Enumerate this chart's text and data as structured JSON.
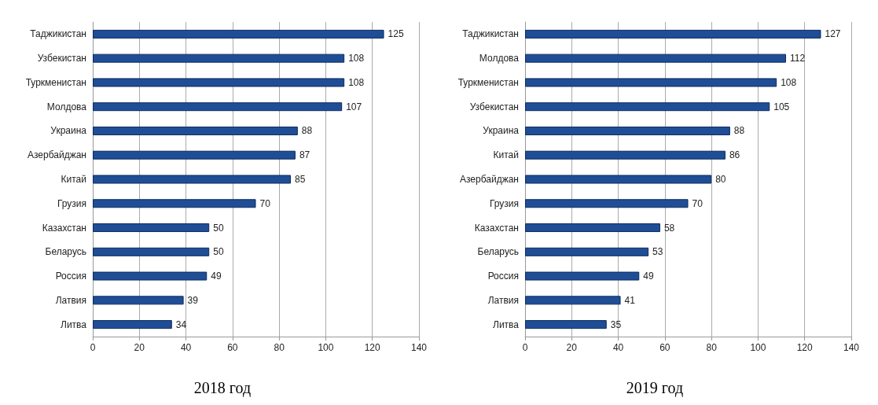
{
  "chart_data": [
    {
      "type": "bar",
      "orientation": "horizontal",
      "title": "2018 год",
      "categories": [
        "Таджикистан",
        "Узбекистан",
        "Туркменистан",
        "Молдова",
        "Украина",
        "Азербайджан",
        "Китай",
        "Грузия",
        "Казахстан",
        "Беларусь",
        "Россия",
        "Латвия",
        "Литва"
      ],
      "values": [
        125,
        108,
        108,
        107,
        88,
        87,
        85,
        70,
        50,
        50,
        49,
        39,
        34
      ],
      "color": "#1f4e96",
      "xlim": [
        0,
        140
      ],
      "xticks": [
        0,
        20,
        40,
        60,
        80,
        100,
        120,
        140
      ],
      "grid": "x",
      "data_labels": true
    },
    {
      "type": "bar",
      "orientation": "horizontal",
      "title": "2019 год",
      "categories": [
        "Таджикистан",
        "Молдова",
        "Туркменистан",
        "Узбекистан",
        "Украина",
        "Китай",
        "Азербайджан",
        "Грузия",
        "Казахстан",
        "Беларусь",
        "Россия",
        "Латвия",
        "Литва"
      ],
      "values": [
        127,
        112,
        108,
        105,
        88,
        86,
        80,
        70,
        58,
        53,
        49,
        41,
        35
      ],
      "color": "#1f4e96",
      "xlim": [
        0,
        140
      ],
      "xticks": [
        0,
        20,
        40,
        60,
        80,
        100,
        120,
        140
      ],
      "grid": "x",
      "data_labels": true
    }
  ]
}
